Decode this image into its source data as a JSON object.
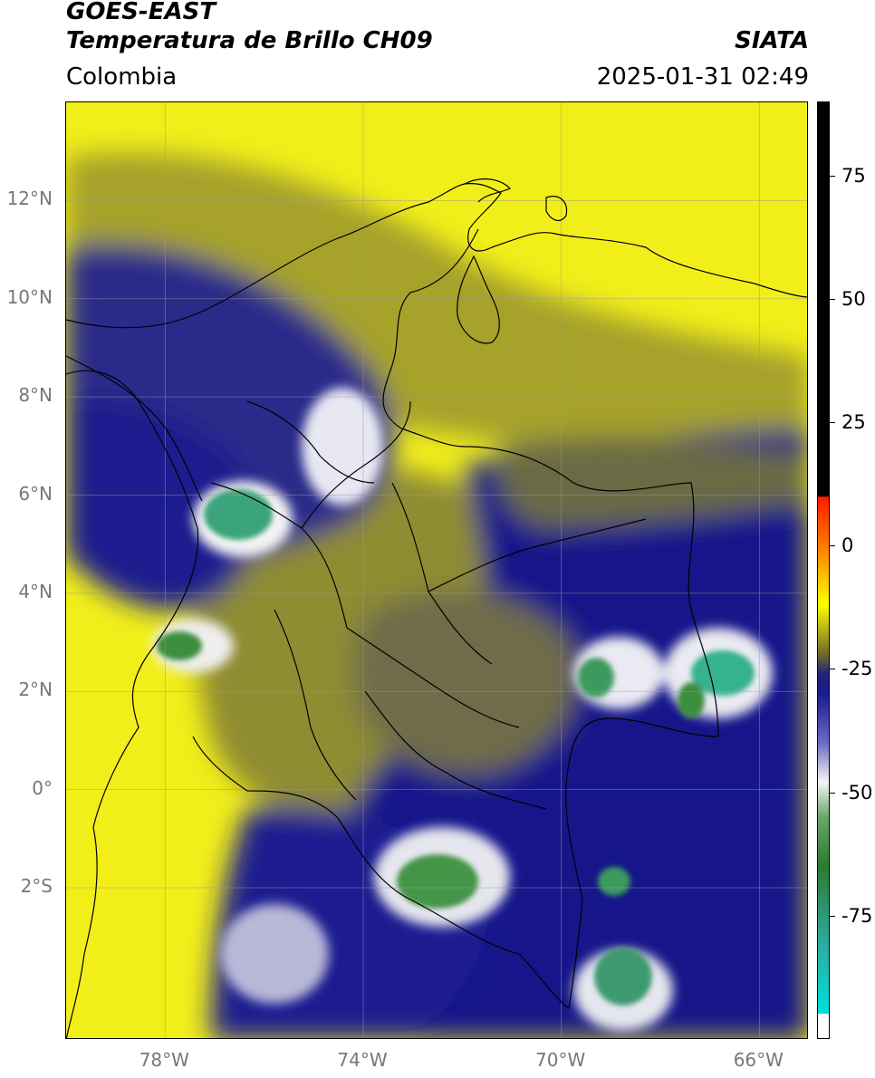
{
  "header": {
    "satellite": "GOES-EAST",
    "product": "Temperatura de Brillo CH09",
    "brand": "SIATA",
    "region": "Colombia",
    "timestamp": "2025-01-31 02:49"
  },
  "map": {
    "lat_labels": [
      {
        "text": "12°N",
        "value": 12
      },
      {
        "text": "10°N",
        "value": 10
      },
      {
        "text": "8°N",
        "value": 8
      },
      {
        "text": "6°N",
        "value": 6
      },
      {
        "text": "4°N",
        "value": 4
      },
      {
        "text": "2°N",
        "value": 2
      },
      {
        "text": "0°",
        "value": 0
      },
      {
        "text": "2°S",
        "value": -2
      }
    ],
    "lon_labels": [
      {
        "text": "78°W",
        "value": -78
      },
      {
        "text": "74°W",
        "value": -74
      },
      {
        "text": "70°W",
        "value": -70
      },
      {
        "text": "66°W",
        "value": -66
      }
    ],
    "extent": {
      "lon_min": -80,
      "lon_max": -65,
      "lat_min": -5.1,
      "lat_max": 14
    },
    "colors": {
      "warm": "#ffff00",
      "olive": "#8c8a2a",
      "navy": "#14148c",
      "cold_white": "#f2f2f2",
      "green": "#3e9a3e",
      "teal": "#2fb29a",
      "border": "#000000",
      "grid": "#9a9a9a"
    }
  },
  "colorbar": {
    "ticks": [
      {
        "text": "75",
        "value": 75
      },
      {
        "text": "50",
        "value": 50
      },
      {
        "text": "25",
        "value": 25
      },
      {
        "text": "0",
        "value": 0
      },
      {
        "text": "-25",
        "value": -25
      },
      {
        "text": "-50",
        "value": -50
      },
      {
        "text": "-75",
        "value": -75
      }
    ],
    "range": [
      -100,
      90
    ]
  }
}
